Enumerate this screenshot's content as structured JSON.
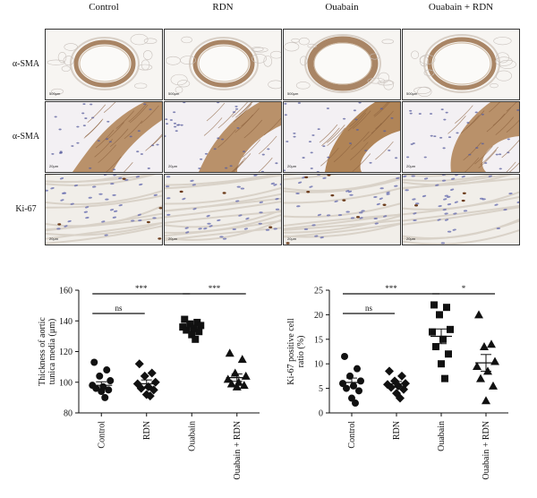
{
  "figure": {
    "columns": [
      "Control",
      "RDN",
      "Ouabain",
      "Ouabain + RDN"
    ],
    "rows": [
      "α-SMA",
      "α-SMA",
      "Ki-67"
    ],
    "scale_label_row1": "500μm",
    "scale_label_row2": "20μm",
    "scale_label_row3": "20μm"
  },
  "chart_data": [
    {
      "type": "scatter",
      "ylabel": "Thickness of aortic tunica media (μm)",
      "categories": [
        "Control",
        "RDN",
        "Ouabain",
        "Ouabain + RDN"
      ],
      "ylim": [
        80,
        160
      ],
      "yticks": [
        80,
        100,
        120,
        140,
        160
      ],
      "markers": [
        "circle",
        "diamond",
        "square",
        "triangle"
      ],
      "points": [
        [
          113,
          108,
          104,
          101,
          98,
          97,
          96,
          95,
          94,
          90
        ],
        [
          112,
          106,
          104,
          100,
          99,
          97,
          96,
          95,
          92,
          91
        ],
        [
          141,
          139,
          138,
          137,
          136,
          135,
          134,
          133,
          131,
          128
        ],
        [
          119,
          115,
          106,
          104,
          102,
          100,
          99,
          98,
          97
        ]
      ],
      "means": [
        98,
        99,
        136,
        103
      ],
      "sem": [
        2.3,
        2.5,
        1.2,
        2.4
      ],
      "significance": [
        {
          "from": "Control",
          "to": "RDN",
          "label": "ns"
        },
        {
          "from": "Control",
          "to": "Ouabain",
          "label": "***"
        },
        {
          "from": "Ouabain",
          "to": "Ouabain + RDN",
          "label": "***"
        }
      ]
    },
    {
      "type": "scatter",
      "ylabel": "Ki-67 positive cell ratio (%)",
      "categories": [
        "Control",
        "RDN",
        "Ouabain",
        "Ouabain + RDN"
      ],
      "ylim": [
        0,
        25
      ],
      "yticks": [
        0,
        5,
        10,
        15,
        20,
        25
      ],
      "markers": [
        "circle",
        "diamond",
        "square",
        "triangle"
      ],
      "points": [
        [
          11.5,
          9.0,
          7.5,
          6.5,
          6.0,
          5.5,
          5.0,
          4.5,
          3.0,
          2.0
        ],
        [
          8.5,
          7.5,
          6.5,
          6.0,
          5.8,
          5.5,
          5.2,
          4.8,
          4.0,
          3.0
        ],
        [
          22.0,
          21.5,
          20.0,
          17.0,
          16.5,
          15.0,
          13.5,
          12.0,
          10.0,
          7.0
        ],
        [
          20.0,
          14.0,
          13.5,
          10.5,
          9.5,
          8.5,
          7.0,
          5.5,
          2.5
        ]
      ],
      "means": [
        6.2,
        5.9,
        15.6,
        10.2
      ],
      "sem": [
        0.9,
        0.5,
        1.5,
        1.7
      ],
      "significance": [
        {
          "from": "Control",
          "to": "RDN",
          "label": "ns"
        },
        {
          "from": "Control",
          "to": "Ouabain",
          "label": "***"
        },
        {
          "from": "Ouabain",
          "to": "Ouabain + RDN",
          "label": "*"
        }
      ]
    }
  ]
}
